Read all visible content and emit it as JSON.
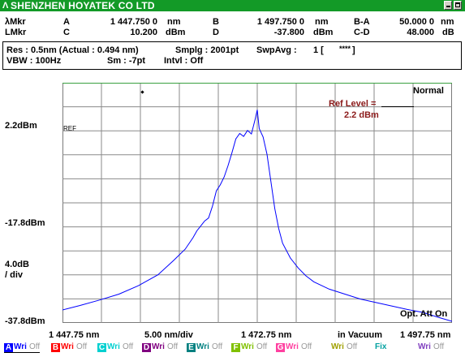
{
  "window": {
    "title": "SHENZHEN HOYATEK CO LTD",
    "logo_glyph": "Λ"
  },
  "markers": {
    "row1_label": "λMkr",
    "row2_label": "LMkr",
    "a_label": "A",
    "a_value": "1 447.750 0",
    "a_unit": "nm",
    "c_label": "C",
    "c_value": "10.200",
    "c_unit": "dBm",
    "b_label": "B",
    "b_value": "1 497.750 0",
    "b_unit": "nm",
    "d_label": "D",
    "d_value": "-37.800",
    "d_unit": "dBm",
    "ba_label": "B-A",
    "ba_value": "50.000 0",
    "ba_unit": "nm",
    "cd_label": "C-D",
    "cd_value": "48.000",
    "cd_unit": "dB"
  },
  "settings": {
    "res": "Res :  0.5nm  (Actual :  0.494 nm)",
    "smplg": "Smplg :   2001pt",
    "swpavg": "SwpAvg :",
    "swpavg_value": "1 [",
    "swpavg_stars": "****",
    "swpavg_close": "]",
    "vbw": "VBW :   100Hz",
    "sm": "Sm :  -7pt",
    "intvl": "Intvl :    Off"
  },
  "plot": {
    "mode_label": "Normal",
    "ref_level_label": "Ref Level =",
    "ref_level_value": "2.2 dBm",
    "ref_marker": "REF",
    "opt_att": "Opt. Att On",
    "y_top_label": "2.2dBm",
    "y_mid_label": "-17.8dBm",
    "y_scale_1": "4.0dB",
    "y_scale_2": "/ div",
    "y_bottom_label": "-37.8dBm",
    "x_start": "1 447.75 nm",
    "x_div": "5.00 nm/div",
    "x_center": "1 472.75 nm",
    "x_medium": "in Vacuum",
    "x_end": "1 497.75 nm"
  },
  "traces": [
    {
      "letter": "A",
      "color": "#0000ff",
      "mode": "Wri",
      "state": "Off",
      "mode_color": "#0000ff"
    },
    {
      "letter": "B",
      "color": "#ff0000",
      "mode": "Wri",
      "state": "Off",
      "mode_color": "#ff0000"
    },
    {
      "letter": "C",
      "color": "#00d0d0",
      "mode": "Wri",
      "state": "Off",
      "mode_color": "#00d0d0"
    },
    {
      "letter": "D",
      "color": "#800080",
      "mode": "Wri",
      "state": "Off",
      "mode_color": "#800080"
    },
    {
      "letter": "E",
      "color": "#008080",
      "mode": "Wri",
      "state": "Off",
      "mode_color": "#008080"
    },
    {
      "letter": "F",
      "color": "#80c000",
      "mode": "Wri",
      "state": "Off",
      "mode_color": "#80c000"
    },
    {
      "letter": "G",
      "color": "#ff40a0",
      "mode": "Wri",
      "state": "Off",
      "mode_color": "#ff40a0"
    }
  ],
  "trace_extra": [
    {
      "label": "Wri",
      "state": "Off",
      "color": "#a0a000"
    },
    {
      "label": "Fix",
      "state": "",
      "color": "#00a0a0"
    },
    {
      "label": "Wri",
      "state": "Off",
      "color": "#8040c0"
    }
  ],
  "chart_data": {
    "type": "line",
    "x_unit": "nm",
    "y_unit": "dBm",
    "xlim": [
      1447.75,
      1497.75
    ],
    "ylim": [
      -37.8,
      2.2
    ],
    "trace_color": "#0000ff",
    "x": [
      1447.75,
      1450.0,
      1452.5,
      1455.0,
      1457.5,
      1460.0,
      1462.0,
      1463.5,
      1464.5,
      1465.0,
      1465.5,
      1466.0,
      1466.5,
      1467.0,
      1467.5,
      1468.0,
      1468.5,
      1469.0,
      1469.5,
      1470.0,
      1470.5,
      1471.0,
      1471.5,
      1472.0,
      1472.5,
      1472.75,
      1473.0,
      1473.5,
      1474.0,
      1474.5,
      1475.0,
      1475.5,
      1476.0,
      1477.0,
      1478.0,
      1479.0,
      1480.0,
      1482.0,
      1484.0,
      1486.0,
      1488.0,
      1490.0,
      1492.0,
      1494.0,
      1496.0,
      1497.75
    ],
    "y": [
      -35.5,
      -34.6,
      -33.5,
      -32.3,
      -30.6,
      -28.4,
      -25.5,
      -23.2,
      -20.9,
      -19.5,
      -18.5,
      -17.5,
      -16.9,
      -14.5,
      -11.4,
      -10.2,
      -8.6,
      -6.3,
      -3.7,
      -0.9,
      0.2,
      -0.4,
      0.8,
      0.1,
      3.2,
      5.0,
      1.2,
      -0.5,
      -4.0,
      -9.5,
      -15.0,
      -19.0,
      -22.0,
      -25.0,
      -27.0,
      -28.6,
      -29.8,
      -31.3,
      -32.3,
      -33.3,
      -34.0,
      -34.7,
      -35.4,
      -36.0,
      -37.0,
      -37.8
    ]
  }
}
